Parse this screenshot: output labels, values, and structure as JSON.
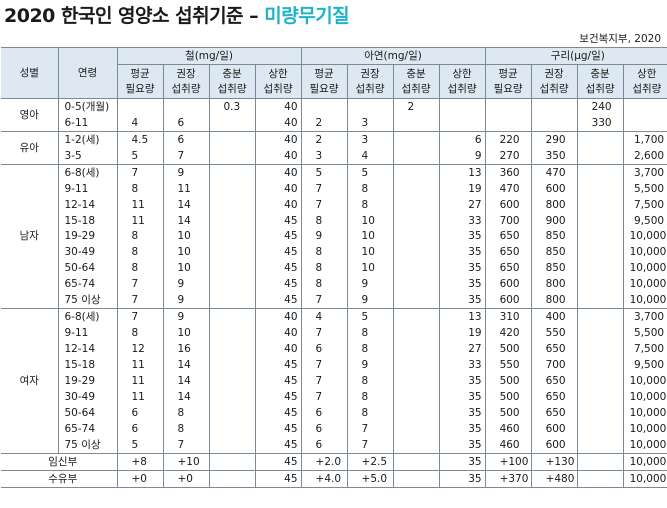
{
  "title": {
    "main": "2020 한국인 영양소 섭취기준 – ",
    "highlight": "미량무기질"
  },
  "source": "보건복지부, 2020",
  "header": {
    "sex": "성별",
    "age": "연령",
    "groups": [
      "철(mg/일)",
      "아연(mg/일)",
      "구리(μg/일)"
    ],
    "sub": [
      [
        "평균",
        "필요량"
      ],
      [
        "권장",
        "섭취량"
      ],
      [
        "충분",
        "섭취량"
      ],
      [
        "상한",
        "섭취량"
      ]
    ]
  },
  "rows": [
    {
      "sex": "영아",
      "age": "0-5(개월)",
      "v": [
        "",
        "",
        "0.3",
        "40",
        "",
        "",
        "2",
        "",
        "",
        "",
        "240",
        ""
      ]
    },
    {
      "sex": "",
      "age": "6-11",
      "v": [
        "4",
        "6",
        "",
        "40",
        "2",
        "3",
        "",
        "",
        "",
        "",
        "330",
        ""
      ]
    },
    {
      "sex": "유아",
      "age": "1-2(세)",
      "v": [
        "4.5",
        "6",
        "",
        "40",
        "2",
        "3",
        "",
        "6",
        "220",
        "290",
        "",
        "1,700"
      ]
    },
    {
      "sex": "",
      "age": "3-5",
      "v": [
        "5",
        "7",
        "",
        "40",
        "3",
        "4",
        "",
        "9",
        "270",
        "350",
        "",
        "2,600"
      ]
    },
    {
      "sex": "남자",
      "age": "6-8(세)",
      "v": [
        "7",
        "9",
        "",
        "40",
        "5",
        "5",
        "",
        "13",
        "360",
        "470",
        "",
        "3,700"
      ]
    },
    {
      "sex": "",
      "age": "9-11",
      "v": [
        "8",
        "11",
        "",
        "40",
        "7",
        "8",
        "",
        "19",
        "470",
        "600",
        "",
        "5,500"
      ]
    },
    {
      "sex": "",
      "age": "12-14",
      "v": [
        "11",
        "14",
        "",
        "40",
        "7",
        "8",
        "",
        "27",
        "600",
        "800",
        "",
        "7,500"
      ]
    },
    {
      "sex": "",
      "age": "15-18",
      "v": [
        "11",
        "14",
        "",
        "45",
        "8",
        "10",
        "",
        "33",
        "700",
        "900",
        "",
        "9,500"
      ]
    },
    {
      "sex": "",
      "age": "19-29",
      "v": [
        "8",
        "10",
        "",
        "45",
        "9",
        "10",
        "",
        "35",
        "650",
        "850",
        "",
        "10,000"
      ]
    },
    {
      "sex": "",
      "age": "30-49",
      "v": [
        "8",
        "10",
        "",
        "45",
        "8",
        "10",
        "",
        "35",
        "650",
        "850",
        "",
        "10,000"
      ]
    },
    {
      "sex": "",
      "age": "50-64",
      "v": [
        "8",
        "10",
        "",
        "45",
        "8",
        "10",
        "",
        "35",
        "650",
        "850",
        "",
        "10,000"
      ]
    },
    {
      "sex": "",
      "age": "65-74",
      "v": [
        "7",
        "9",
        "",
        "45",
        "8",
        "9",
        "",
        "35",
        "600",
        "800",
        "",
        "10,000"
      ]
    },
    {
      "sex": "",
      "age": "75 이상",
      "v": [
        "7",
        "9",
        "",
        "45",
        "7",
        "9",
        "",
        "35",
        "600",
        "800",
        "",
        "10,000"
      ]
    },
    {
      "sex": "여자",
      "age": "6-8(세)",
      "v": [
        "7",
        "9",
        "",
        "40",
        "4",
        "5",
        "",
        "13",
        "310",
        "400",
        "",
        "3,700"
      ]
    },
    {
      "sex": "",
      "age": "9-11",
      "v": [
        "8",
        "10",
        "",
        "40",
        "7",
        "8",
        "",
        "19",
        "420",
        "550",
        "",
        "5,500"
      ]
    },
    {
      "sex": "",
      "age": "12-14",
      "v": [
        "12",
        "16",
        "",
        "40",
        "6",
        "8",
        "",
        "27",
        "500",
        "650",
        "",
        "7,500"
      ]
    },
    {
      "sex": "",
      "age": "15-18",
      "v": [
        "11",
        "14",
        "",
        "45",
        "7",
        "9",
        "",
        "33",
        "550",
        "700",
        "",
        "9,500"
      ]
    },
    {
      "sex": "",
      "age": "19-29",
      "v": [
        "11",
        "14",
        "",
        "45",
        "7",
        "8",
        "",
        "35",
        "500",
        "650",
        "",
        "10,000"
      ]
    },
    {
      "sex": "",
      "age": "30-49",
      "v": [
        "11",
        "14",
        "",
        "45",
        "7",
        "8",
        "",
        "35",
        "500",
        "650",
        "",
        "10,000"
      ]
    },
    {
      "sex": "",
      "age": "50-64",
      "v": [
        "6",
        "8",
        "",
        "45",
        "6",
        "8",
        "",
        "35",
        "500",
        "650",
        "",
        "10,000"
      ]
    },
    {
      "sex": "",
      "age": "65-74",
      "v": [
        "6",
        "8",
        "",
        "45",
        "6",
        "7",
        "",
        "35",
        "460",
        "600",
        "",
        "10,000"
      ]
    },
    {
      "sex": "",
      "age": "75 이상",
      "v": [
        "5",
        "7",
        "",
        "45",
        "6",
        "7",
        "",
        "35",
        "460",
        "600",
        "",
        "10,000"
      ]
    },
    {
      "sex": "임신부",
      "age": "",
      "v": [
        "+8",
        "+10",
        "",
        "45",
        "+2.0",
        "+2.5",
        "",
        "35",
        "+100",
        "+130",
        "",
        "10,000"
      ]
    },
    {
      "sex": "수유부",
      "age": "",
      "v": [
        "+0",
        "+0",
        "",
        "45",
        "+4.0",
        "+5.0",
        "",
        "35",
        "+370",
        "+480",
        "",
        "10,000"
      ]
    }
  ]
}
